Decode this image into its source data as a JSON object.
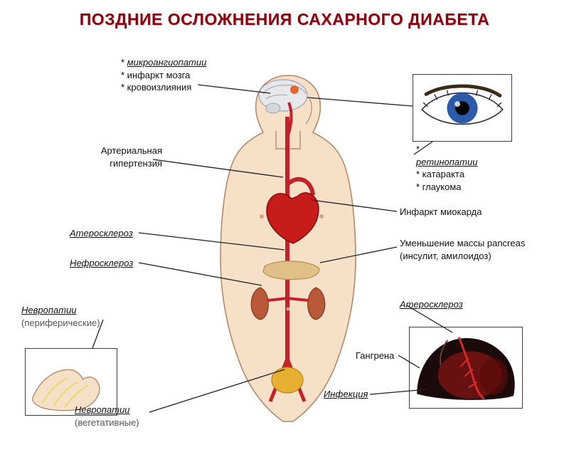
{
  "title": "ПОЗДНИЕ  ОСЛОЖНЕНИЯ  САХАРНОГО  ДИАБЕТА",
  "colors": {
    "title": "#8a0010",
    "skin": "#f7e0c8",
    "skin_outline": "#b28a6a",
    "artery": "#c2222a",
    "artery_dark": "#8a0010",
    "heart": "#c81c1c",
    "kidney": "#b85a3a",
    "pancreas": "#e0c088",
    "bladder": "#e8b030",
    "brain_gray": "#cfd2d6",
    "brain_lesion": "#e06a30",
    "box_border": "#3c3c58",
    "iris": "#2a5aa8",
    "pupil": "#000000",
    "foot_dark": "#1a0a0a",
    "foot_red": "#a81818",
    "nerve": "#e8d870"
  },
  "labels": {
    "brain": [
      "* микроангиопатии",
      "* инфаркт мозга",
      "* кровоизлияния"
    ],
    "hypertension": "Артериальная\nгипертензия",
    "atherosclerosis_l": "Атеросклероз",
    "nephrosclerosis": "Нефросклероз",
    "neuropathy_periph_title": "Невропатии",
    "neuropathy_periph_sub": "(периферические)",
    "neuropathy_veg_title": "Невропатии",
    "neuropathy_veg_sub": "(вегетативные)",
    "eye": [
      "* ретинопатии",
      "* катаракта",
      "* глаукома"
    ],
    "mi": "Инфаркт миокарда",
    "pancreas_line1": "Уменьшение  массы  pancreas",
    "pancreas_line2": "(инсулит,  амилоидоз)",
    "atherosclerosis_r": "Атеросклероз",
    "gangrene": "Гангрена",
    "infection": "Инфекция"
  },
  "layout": {
    "title_fontsize": 23,
    "label_fontsize": 13
  }
}
